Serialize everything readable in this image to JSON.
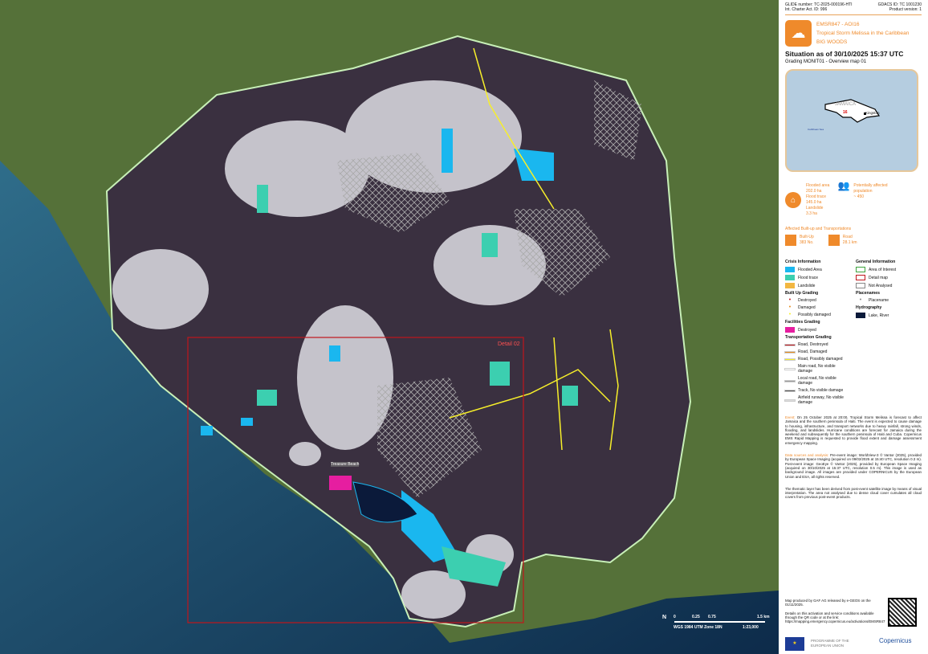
{
  "header": {
    "glide": "GLIDE number: TC-2025-000196-HTI",
    "charter": "Int. Charter Act. ID: 996",
    "gdacs": "GDACS ID: TC 1001230",
    "product": "Product version: 1"
  },
  "title": {
    "code": "EMSR847 - AOI16",
    "event": "Tropical Storm Melissa in the Caribbean",
    "aoi": "BIG WOODS",
    "situation": "Situation as of 30/10/2025 15:37 UTC",
    "subtitle": "Grading MONIT01 - Overview map 01",
    "icon": "flood-icon"
  },
  "inset": {
    "country": "JAMAICA",
    "aoi_number": "16",
    "city": "Kingston",
    "sea": "Caribbean Sea"
  },
  "stats": {
    "flood_lines": [
      "Flooded area",
      "202.0 ha",
      "Flood trace",
      "145.0 ha",
      "Landslide",
      "3.3 ha"
    ],
    "population_lines": [
      "Potentially affected",
      "population",
      "~ 450"
    ],
    "section": "Affected Built-up and Transportations",
    "builtup_label": "Built-Up",
    "builtup_value": "383 No.",
    "road_label": "Road",
    "road_value": "28.1 km"
  },
  "legend": {
    "crisis": {
      "title": "Crisis Information",
      "items": [
        {
          "label": "Flooded Area",
          "color": "#1ab7ef"
        },
        {
          "label": "Flood trace",
          "color": "#3ccfb0"
        },
        {
          "label": "Landslide",
          "color": "#f2b742"
        }
      ]
    },
    "builtup": {
      "title": "Built Up Grading",
      "items": [
        {
          "label": "Destroyed",
          "color": "#c0161c"
        },
        {
          "label": "Damaged",
          "color": "#e68a1c"
        },
        {
          "label": "Possibly damaged",
          "color": "#f7ef2a"
        }
      ]
    },
    "facilities": {
      "title": "Facilities Grading",
      "items": [
        {
          "label": "Destroyed",
          "color": "#e61ea0"
        }
      ]
    },
    "transport": {
      "title": "Transportation Grading",
      "items": [
        {
          "label": "Road, Destroyed",
          "color": "#c0161c"
        },
        {
          "label": "Road, Damaged",
          "color": "#e68a1c"
        },
        {
          "label": "Road, Possibly damaged",
          "color": "#f7ef2a"
        },
        {
          "label": "Main road, No visible damage",
          "color": "#ffffff"
        },
        {
          "label": "Local road, No visible damage",
          "color": "#999999"
        },
        {
          "label": "Track, No visible damage",
          "color": "#555555"
        },
        {
          "label": "Airfield runway, No visible damage",
          "color": "#dddddd"
        }
      ]
    },
    "general": {
      "title": "General Information",
      "items": [
        {
          "label": "Area of Interest",
          "color": "#3da33d"
        },
        {
          "label": "Detail map",
          "color": "#c0161c"
        },
        {
          "label": "Not Analysed",
          "color": "#888888"
        }
      ]
    },
    "placenames": {
      "title": "Placenames",
      "items": [
        {
          "label": "Placename"
        }
      ]
    },
    "hydro": {
      "title": "Hydrography",
      "items": [
        {
          "label": "Lake, River",
          "color": "#0b1a3a"
        }
      ]
    }
  },
  "text": {
    "event_label": "Event:",
    "event": "On 25 October 2025 at 20:00, Tropical Storm Melissa is forecast to affect Jamaica and the southern peninsula of Haiti. The event is expected to cause damage to housing, infrastructure, and transport networks due to heavy rainfall, strong winds, flooding, and landslides. Hurricane conditions are forecast for Jamaica during the weekend and subsequently for the southern peninsula of Haiti and Cuba. Copernicus EMS Rapid Mapping is requested to provide flood extent and damage assessment emergency mapping.",
    "sources_label": "Data sources and analysis:",
    "sources": "Pre-event image: WorldView-3 © Vantor (2025), provided by European Space Imaging (acquired on 09/02/2025 at 15:40 UTC, resolution 0.3 m). Post-event image: GeoEye © Vantor (2025), provided by European Space Imaging (acquired on 30/10/2025 at 15:37 UTC, resolution 0.5 m). This image is used as background image. All images are provided under COPERNICUS by the European Union and ESA, all rights reserved.",
    "thematic": "The thematic layer has been derived from post-event satellite image by means of visual interpretation. The area not analysed due to dense cloud cover cumulates all cloud covers from previous post-event products.",
    "produced": "Map produced by GAF AG released by e-GEOS on the 01/11/2025.",
    "details": "Details on this activation and service conditions available through the QR code or at the link: https://mapping.emergency.copernicus.eu/activations/EMSR847",
    "programme": "PROGRAMME OF THE EUROPEAN UNION",
    "copernicus": "Copernicus"
  },
  "map": {
    "detail_label": "Detail 02",
    "placename": "Treasure Beach",
    "scale_ticks": [
      "0",
      "0.25",
      "0.75",
      "1.5 km"
    ],
    "projection": "WGS 1984 UTM Zone 18N",
    "scale": "1:23,000",
    "north": "N"
  }
}
